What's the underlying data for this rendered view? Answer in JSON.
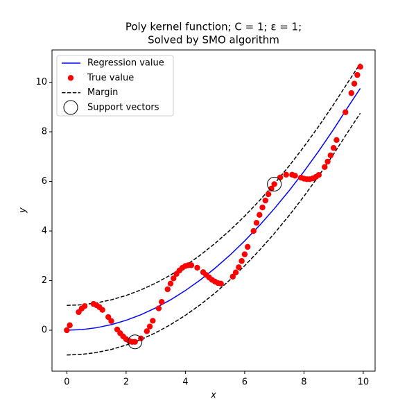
{
  "chart_data": {
    "type": "line",
    "title": [
      "Poly kernel function; C = 1; ε = 1;",
      "Solved by SMO algorithm"
    ],
    "x_label": "x",
    "y_label": "y",
    "xlim": [
      -0.5,
      10.4
    ],
    "ylim": [
      -1.65,
      11.3
    ],
    "xticks": [
      0,
      2,
      4,
      6,
      8,
      10
    ],
    "yticks": [
      0,
      2,
      4,
      6,
      8,
      10
    ],
    "legend": "upper left",
    "x": [
      0,
      0.5,
      1,
      1.5,
      2,
      2.5,
      3,
      3.5,
      4,
      4.5,
      5,
      5.5,
      6,
      6.5,
      7,
      7.5,
      8,
      8.5,
      9,
      9.5,
      9.9
    ],
    "series": [
      {
        "name": "Regression value",
        "color": "#0000ff",
        "style": "solid",
        "values": [
          0,
          0.025,
          0.1,
          0.225,
          0.4,
          0.625,
          0.9,
          1.225,
          1.6,
          2.025,
          2.5,
          3.025,
          3.6,
          4.225,
          4.9,
          5.625,
          6.4,
          7.225,
          8.1,
          9.025,
          9.75
        ]
      },
      {
        "name": "Margin",
        "color": "#000000",
        "style": "dashed",
        "values": [
          1,
          1.025,
          1.1,
          1.225,
          1.4,
          1.625,
          1.9,
          2.225,
          2.6,
          3.025,
          3.5,
          4.025,
          4.6,
          5.225,
          5.9,
          6.625,
          7.4,
          8.225,
          9.1,
          10.025,
          10.75
        ]
      },
      {
        "color": "#000000",
        "style": "dashed",
        "values": [
          -1,
          -0.975,
          -0.9,
          -0.775,
          -0.6,
          -0.375,
          -0.1,
          0.225,
          0.6,
          1.025,
          1.5,
          2.025,
          2.6,
          3.225,
          3.9,
          4.625,
          5.4,
          6.225,
          7.1,
          8.025,
          8.75
        ]
      }
    ],
    "points": {
      "name": "True value",
      "color": "#ff0000",
      "x": [
        0,
        0.1,
        0.4,
        0.5,
        0.6,
        0.9,
        1,
        1.1,
        1.2,
        1.4,
        1.5,
        1.7,
        1.8,
        1.9,
        2,
        2.1,
        2.2,
        2.3,
        2.5,
        2.7,
        2.8,
        2.9,
        3.1,
        3.2,
        3.4,
        3.5,
        3.6,
        3.7,
        3.8,
        3.9,
        4,
        4.1,
        4.2,
        4.4,
        4.6,
        4.7,
        4.8,
        4.9,
        5,
        5.1,
        5.2,
        5.6,
        5.7,
        5.8,
        5.9,
        6,
        6.1,
        6.3,
        6.4,
        6.5,
        6.6,
        6.7,
        6.8,
        6.9,
        7,
        7.2,
        7.4,
        7.6,
        7.7,
        7.9,
        8,
        8.1,
        8.2,
        8.3,
        8.4,
        8.5,
        8.7,
        8.8,
        8.9,
        9,
        9.1,
        9.4,
        9.6,
        9.7,
        9.8,
        9.9
      ],
      "values": [
        0,
        0.2,
        0.73,
        0.87,
        0.97,
        1.06,
        1.01,
        0.93,
        0.82,
        0.53,
        0.37,
        0.03,
        -0.12,
        -0.25,
        -0.36,
        -0.43,
        -0.47,
        -0.47,
        -0.33,
        -0.04,
        0.15,
        0.38,
        0.88,
        1.14,
        1.65,
        1.88,
        2.09,
        2.27,
        2.41,
        2.52,
        2.59,
        2.62,
        2.62,
        2.52,
        2.34,
        2.23,
        2.13,
        2.03,
        1.96,
        1.9,
        1.88,
        2.16,
        2.33,
        2.54,
        2.79,
        3.06,
        3.36,
        4,
        4.33,
        4.65,
        4.95,
        5.23,
        5.48,
        5.71,
        5.89,
        6.16,
        6.27,
        6.27,
        6.23,
        6.15,
        6.11,
        6.09,
        6.09,
        6.12,
        6.18,
        6.26,
        6.58,
        6.8,
        7.05,
        7.35,
        7.67,
        8.79,
        9.56,
        9.94,
        10.29,
        10.62
      ]
    },
    "support_vectors": {
      "name": "Support vectors",
      "color": "#000000",
      "x": [
        2.3,
        7
      ],
      "values": [
        -0.47,
        5.89
      ]
    }
  }
}
